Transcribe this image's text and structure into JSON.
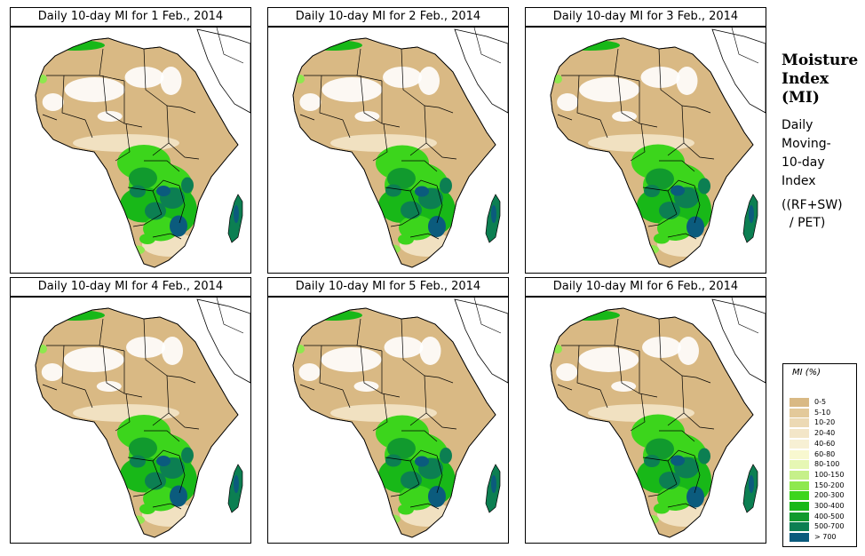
{
  "panels": [
    {
      "title": "Daily 10-day MI for  1 Feb., 2014",
      "day": 1
    },
    {
      "title": "Daily 10-day MI for  2 Feb., 2014",
      "day": 2
    },
    {
      "title": "Daily 10-day MI for  3 Feb., 2014",
      "day": 3
    },
    {
      "title": "Daily 10-day MI for  4 Feb., 2014",
      "day": 4
    },
    {
      "title": "Daily 10-day MI for  5 Feb., 2014",
      "day": 5
    },
    {
      "title": "Daily 10-day MI for  6 Feb., 2014",
      "day": 6
    }
  ],
  "side": {
    "title": [
      "Moisture",
      "Index",
      "(MI)"
    ],
    "description": [
      "Daily",
      "Moving-",
      "10-day",
      "Index"
    ],
    "formula": [
      "((RF+SW)",
      "  / PET)"
    ]
  },
  "legend": {
    "title": "MI (%)",
    "items": [
      {
        "label": "0-5",
        "color": "#d9b984"
      },
      {
        "label": "5-10",
        "color": "#e3c99a"
      },
      {
        "label": "10-20",
        "color": "#ecd9b4"
      },
      {
        "label": "20-40",
        "color": "#f3e6c8"
      },
      {
        "label": "40-60",
        "color": "#f7f0d4"
      },
      {
        "label": "60-80",
        "color": "#f8f8d0"
      },
      {
        "label": "80-100",
        "color": "#e6f7b4"
      },
      {
        "label": "100-150",
        "color": "#c6f08a"
      },
      {
        "label": "150-200",
        "color": "#8ee84e"
      },
      {
        "label": "200-300",
        "color": "#3cd51c"
      },
      {
        "label": "300-400",
        "color": "#18b818"
      },
      {
        "label": "400-500",
        "color": "#119a2e"
      },
      {
        "label": "500-700",
        "color": "#0c7f52"
      },
      {
        "label": "> 700",
        "color": "#0b5b7d"
      }
    ]
  }
}
